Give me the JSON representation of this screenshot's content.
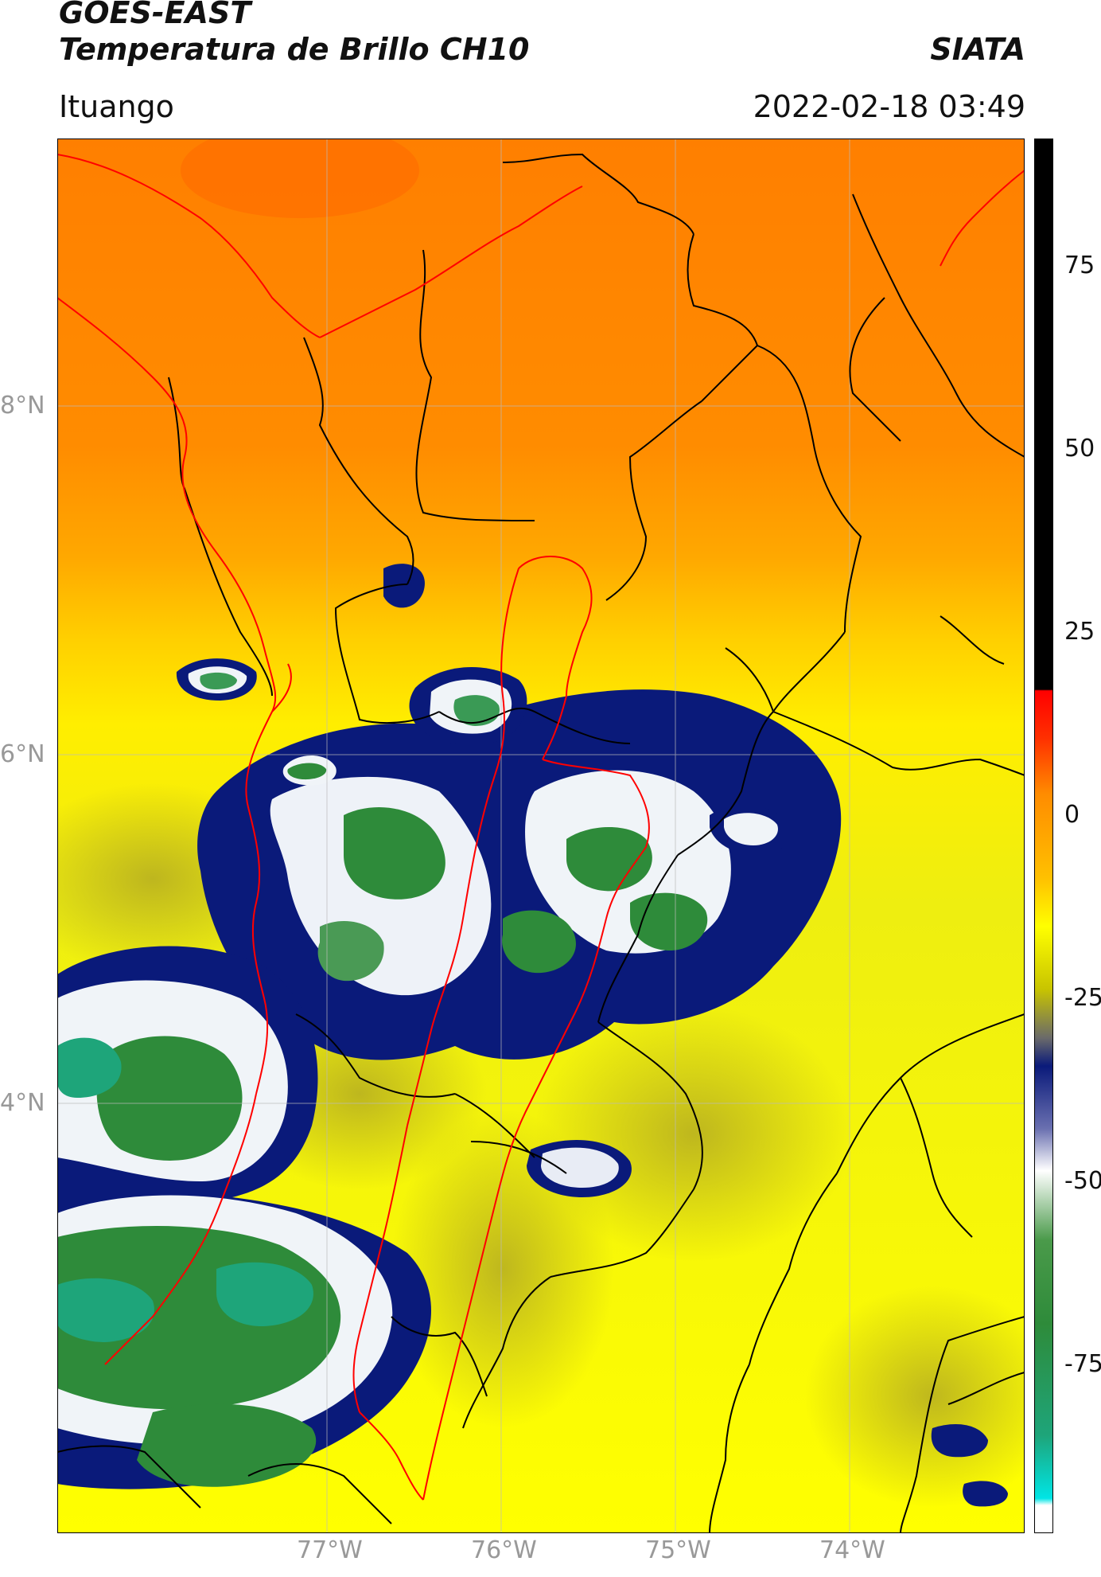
{
  "header": {
    "satellite": "GOES-EAST",
    "product": "Temperatura de Brillo CH10",
    "organization": "SIATA",
    "location": "Ituango",
    "datetime": "2022-02-18 03:49"
  },
  "map": {
    "lat_labels": [
      "8°N",
      "6°N",
      "4°N"
    ],
    "lon_labels": [
      "77°W",
      "76°W",
      "75°W",
      "74°W"
    ],
    "colors": {
      "warm_orange": "#ff8c00",
      "yellow": "#ffe800",
      "dark_yellow": "#c8c400",
      "navy": "#0a1a7a",
      "white_cloud": "#f0f4f8",
      "green": "#2e8b3a",
      "teal": "#1ea57a",
      "border_black": "#000000",
      "border_red": "#ff0000",
      "grid": "#bbbbbb"
    }
  },
  "colorbar": {
    "ticks": [
      "75",
      "50",
      "25",
      "0",
      "-25",
      "-50",
      "-75"
    ],
    "colors": [
      "#000000",
      "#ff0000",
      "#ff8c00",
      "#ffff00",
      "#6a6a6a",
      "#0a1a7a",
      "#ffffff",
      "#2e8b3a",
      "#1ea57a",
      "#00e5e5",
      "#ffffff"
    ]
  }
}
